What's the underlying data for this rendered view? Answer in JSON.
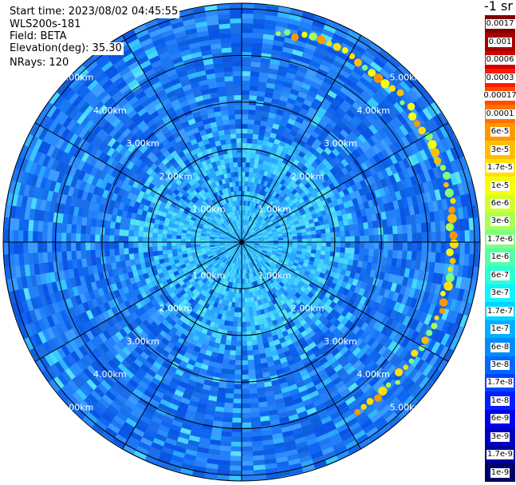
{
  "info": {
    "start_time": "Start time: 2023/08/02 04:45:55",
    "device": "WLS200s-181",
    "field": "Field: BETA",
    "elevation": "Elevation(deg): 35.30",
    "nrays": "NRays: 120"
  },
  "range_rings": [
    "1.00km",
    "2.00km",
    "3.00km",
    "4.00km",
    "5.00km"
  ],
  "colorbar": {
    "unit": "-1 sr",
    "ticks": [
      "0.0017",
      "0.001",
      "0.0006",
      "0.0003",
      "0.00017",
      "0.0001",
      "6e-5",
      "3e-5",
      "1.7e-5",
      "1e-5",
      "6e-6",
      "3e-6",
      "1.7e-6",
      "1e-6",
      "6e-7",
      "3e-7",
      "1.7e-7",
      "1e-7",
      "6e-8",
      "3e-8",
      "1.7e-8",
      "1e-8",
      "6e-9",
      "3e-9",
      "1.7e-9",
      "1e-9"
    ],
    "colors": [
      "#7f0000",
      "#a80000",
      "#d40000",
      "#ff1a00",
      "#ff4a00",
      "#ff7200",
      "#ff9800",
      "#ffbf00",
      "#ffe000",
      "#f5ff0a",
      "#d2ff2c",
      "#a8ff55",
      "#7fff7f",
      "#55ffa8",
      "#2cffd2",
      "#0af5ff",
      "#00d4ff",
      "#00b0ff",
      "#008cff",
      "#0068ff",
      "#0044ff",
      "#0020ff",
      "#0000f0",
      "#0000c4",
      "#000098",
      "#00006a"
    ]
  }
}
